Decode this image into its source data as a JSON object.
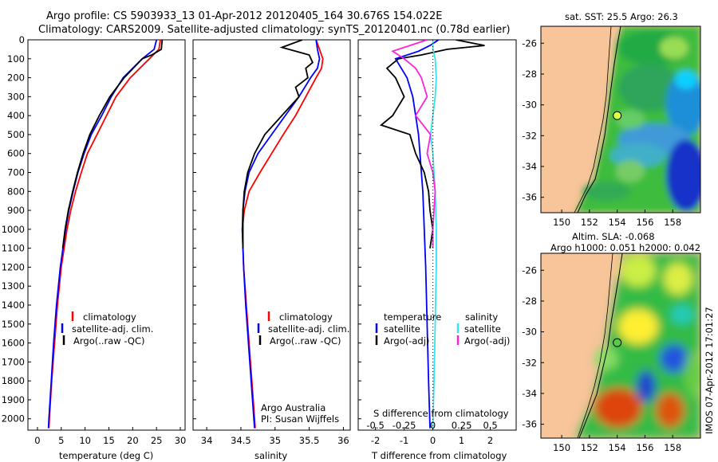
{
  "header": {
    "line1": "Argo profile: CS 5903933_13 01-Apr-2012 20120405_164 30.676S 154.022E",
    "line2": "Climatology: CARS2009. Satellite-adjusted climatology: synTS_20120401.nc (0.78d earlier)"
  },
  "colors": {
    "climatology": "#ff0000",
    "satellite": "#0000ff",
    "argo": "#000000",
    "salinity_sat": "#33e5ee",
    "salinity_argo": "#ff22dd",
    "land": "#f8c49a"
  },
  "chart_data": [
    {
      "type": "line",
      "name": "temperature",
      "xlabel": "temperature (deg C)",
      "ylabel": "",
      "xlim": [
        -2,
        31
      ],
      "ylim": [
        2060,
        0
      ],
      "xticks": [
        "0",
        "5",
        "10",
        "15",
        "20",
        "25",
        "30"
      ],
      "yticks": [
        "0",
        "100",
        "200",
        "300",
        "400",
        "500",
        "600",
        "700",
        "800",
        "900",
        "1000",
        "1100",
        "1200",
        "1300",
        "1400",
        "1500",
        "1600",
        "1700",
        "1800",
        "1900",
        "2000"
      ],
      "legend": [
        "climatology",
        "satellite-adj. clim.",
        "Argo(..raw -QC)"
      ],
      "series": [
        {
          "name": "climatology",
          "depth": [
            0,
            50,
            100,
            200,
            300,
            400,
            500,
            600,
            700,
            800,
            900,
            1000,
            1200,
            1400,
            1600,
            1800,
            2000,
            2050
          ],
          "values": [
            25.8,
            25.5,
            23.5,
            19.5,
            16.5,
            14.5,
            12.5,
            10.5,
            9.2,
            8.0,
            7.0,
            6.2,
            5.0,
            4.2,
            3.6,
            3.0,
            2.5,
            2.4
          ]
        },
        {
          "name": "satellite-adj. clim.",
          "depth": [
            0,
            50,
            100,
            200,
            300,
            400,
            500,
            600,
            700,
            800,
            900,
            1000,
            1200,
            1400,
            1600,
            1800,
            2000,
            2050
          ],
          "values": [
            25.0,
            24.5,
            22.0,
            18.0,
            15.5,
            13.5,
            11.3,
            9.8,
            8.5,
            7.5,
            6.6,
            5.9,
            4.8,
            4.0,
            3.4,
            2.9,
            2.4,
            2.3
          ]
        },
        {
          "name": "Argo(..raw -QC)",
          "depth": [
            0,
            50,
            80,
            100,
            200,
            300,
            400,
            500,
            600,
            700,
            800,
            900,
            1000,
            1100
          ],
          "values": [
            26.2,
            26.0,
            24.0,
            22.0,
            18.2,
            15.2,
            13.0,
            11.0,
            9.6,
            8.4,
            7.4,
            6.5,
            5.8,
            5.3
          ]
        }
      ]
    },
    {
      "type": "line",
      "name": "salinity",
      "xlabel": "salinity",
      "ylabel": "",
      "xlim": [
        33.8,
        36.1
      ],
      "ylim": [
        2060,
        0
      ],
      "xticks": [
        "34",
        "34.5",
        "35",
        "35.5",
        "36"
      ],
      "legend": [
        "climatology",
        "satellite-adj. clim.",
        "Argo(..raw -QC)"
      ],
      "annotation": [
        "Argo Australia",
        "PI: Susan Wijffels"
      ],
      "series": [
        {
          "name": "climatology",
          "depth": [
            0,
            50,
            100,
            150,
            200,
            300,
            400,
            500,
            600,
            700,
            800,
            900,
            1000,
            1200,
            1400,
            1600,
            1800,
            2000,
            2050
          ],
          "values": [
            35.6,
            35.65,
            35.7,
            35.68,
            35.6,
            35.45,
            35.3,
            35.12,
            34.95,
            34.78,
            34.62,
            34.55,
            34.52,
            34.54,
            34.58,
            34.62,
            34.66,
            34.7,
            34.71
          ]
        },
        {
          "name": "satellite-adj. clim.",
          "depth": [
            0,
            50,
            100,
            150,
            200,
            300,
            400,
            500,
            600,
            700,
            800,
            900,
            1000,
            1200,
            1400,
            1600,
            1800,
            2000,
            2050
          ],
          "values": [
            35.6,
            35.62,
            35.65,
            35.62,
            35.52,
            35.35,
            35.15,
            34.95,
            34.75,
            34.62,
            34.56,
            34.53,
            34.52,
            34.54,
            34.57,
            34.61,
            34.65,
            34.69,
            34.7
          ]
        },
        {
          "name": "Argo(..raw -QC)",
          "depth": [
            0,
            40,
            80,
            120,
            150,
            200,
            250,
            300,
            400,
            500,
            600,
            700,
            800,
            900,
            1000,
            1100
          ],
          "values": [
            35.4,
            35.1,
            35.5,
            35.55,
            35.45,
            35.48,
            35.3,
            35.35,
            35.1,
            34.85,
            34.7,
            34.6,
            34.55,
            34.53,
            34.53,
            34.53
          ]
        }
      ]
    },
    {
      "type": "line",
      "name": "difference",
      "xlabel": "T difference from climatology",
      "x2label": "S difference from climatology",
      "xlim": [
        -2.6,
        2.9
      ],
      "ylim": [
        2060,
        0
      ],
      "xticks": [
        "-2",
        "-1",
        "0",
        "1",
        "2"
      ],
      "x2ticks": [
        "-0.5",
        "-0.25",
        "0",
        "0.25",
        "0.5"
      ],
      "legend": {
        "temperature": [
          "satellite",
          "Argo(-adj)"
        ],
        "salinity": [
          "satellite",
          "Argo(-adj)"
        ],
        "headings": [
          "temperature",
          "salinity"
        ]
      },
      "series": [
        {
          "name": "T satellite",
          "depth": [
            0,
            30,
            60,
            100,
            200,
            300,
            400,
            500,
            600,
            700,
            800,
            1000,
            1200,
            1500,
            1800,
            2050
          ],
          "values": [
            0.2,
            -0.1,
            -0.5,
            -1.3,
            -0.9,
            -0.7,
            -0.6,
            -0.5,
            -0.45,
            -0.4,
            -0.35,
            -0.3,
            -0.25,
            -0.2,
            -0.15,
            -0.1
          ]
        },
        {
          "name": "T Argo(-adj)",
          "depth": [
            0,
            30,
            50,
            80,
            100,
            150,
            200,
            300,
            400,
            450,
            500,
            600,
            700,
            800,
            900,
            1000,
            1100
          ],
          "values": [
            0.8,
            1.8,
            0.5,
            -0.4,
            -1.2,
            -1.6,
            -1.3,
            -1.0,
            -1.4,
            -1.8,
            -0.8,
            -0.6,
            -0.3,
            -0.15,
            -0.1,
            0.0,
            -0.1
          ]
        },
        {
          "name": "S satellite",
          "depth": [
            0,
            50,
            100,
            200,
            300,
            400,
            500,
            600,
            700,
            800,
            1000,
            1200,
            1500,
            1800,
            2050
          ],
          "values": [
            0.0,
            0.0,
            0.02,
            0.03,
            0.02,
            0.0,
            -0.02,
            0.0,
            0.01,
            0.02,
            0.03,
            0.03,
            0.02,
            0.01,
            0.0
          ]
        },
        {
          "name": "S Argo(-adj)",
          "depth": [
            0,
            30,
            60,
            100,
            150,
            200,
            300,
            400,
            500,
            600,
            700,
            800,
            900,
            1000,
            1100
          ],
          "values": [
            -0.05,
            -0.2,
            -0.35,
            -0.25,
            -0.15,
            -0.1,
            -0.05,
            -0.15,
            -0.02,
            -0.05,
            0.0,
            0.02,
            0.01,
            0.0,
            0.0
          ]
        }
      ]
    },
    {
      "type": "heatmap",
      "name": "sst-map",
      "title": "sat. SST: 25.5 Argo: 26.3",
      "xticks": [
        "150",
        "152",
        "154",
        "156",
        "158"
      ],
      "yticks": [
        "-26",
        "-28",
        "-30",
        "-32",
        "-34",
        "-36"
      ],
      "marker": {
        "lon": 154.0,
        "lat": -30.7
      }
    },
    {
      "type": "heatmap",
      "name": "sla-map",
      "title": [
        "Altim. SLA: -0.068",
        "Argo h1000: 0.051 h2000: 0.042"
      ],
      "xticks": [
        "150",
        "152",
        "154",
        "156",
        "158"
      ],
      "yticks": [
        "-26",
        "-28",
        "-30",
        "-32",
        "-34",
        "-36"
      ],
      "marker": {
        "lon": 154.0,
        "lat": -30.7
      }
    }
  ],
  "side_label": "IMOS 07-Apr-2012 17:01:27"
}
